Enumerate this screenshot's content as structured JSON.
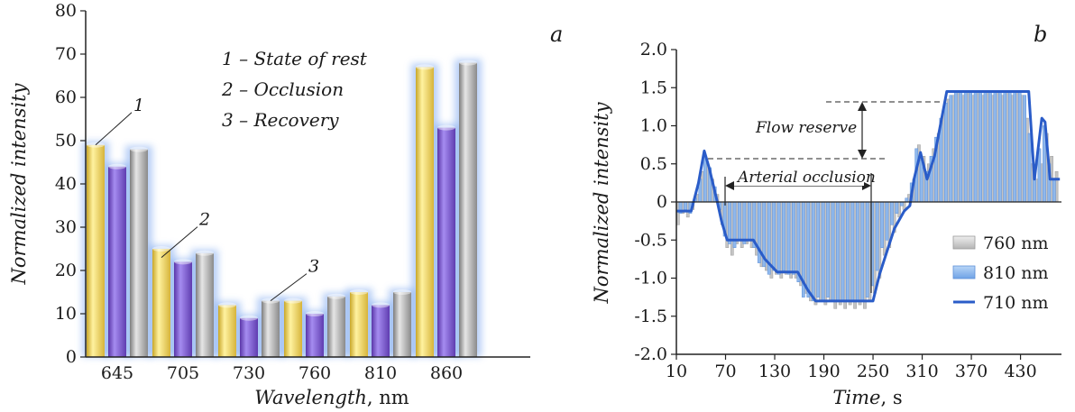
{
  "chart_data": [
    {
      "type": "bar",
      "panel_label": "a",
      "xlabel": "Wavelength",
      "xlabel_unit": ", nm",
      "ylabel": "Normalized intensity",
      "ylim": [
        0,
        80
      ],
      "yticks": [
        0,
        10,
        20,
        30,
        40,
        50,
        60,
        70,
        80
      ],
      "categories": [
        "645",
        "705",
        "730",
        "760",
        "810",
        "860"
      ],
      "series": [
        {
          "name": "1 – State of rest",
          "color": "#f2d455",
          "values": [
            49,
            25,
            12,
            13,
            15,
            67
          ]
        },
        {
          "name": "2 – Occlusion",
          "color": "#7a55c8",
          "values": [
            44,
            22,
            9,
            10,
            12,
            53
          ]
        },
        {
          "name": "3 – Recovery",
          "color": "#a6a6a6",
          "values": [
            48,
            24,
            13,
            14,
            15,
            68
          ]
        }
      ],
      "legend": [
        "1 – State of rest",
        "2 – Occlusion",
        "3 – Recovery"
      ],
      "callouts": [
        {
          "label": "1",
          "category": "645",
          "value": 49
        },
        {
          "label": "2",
          "category": "705",
          "value": 23
        },
        {
          "label": "3",
          "category": "730",
          "value": 13
        }
      ]
    },
    {
      "type": "bar",
      "panel_label": "b",
      "xlabel": "Time",
      "xlabel_unit": ", s",
      "ylabel": "Normalized intensity",
      "ylim": [
        -2.0,
        2.0
      ],
      "xlim": [
        10,
        480
      ],
      "yticks": [
        "2.0",
        "1.5",
        "1.0",
        "0.5",
        "0",
        "-0.5",
        "-1.0",
        "-1.5",
        "-2.0"
      ],
      "ytick_values": [
        2.0,
        1.5,
        1.0,
        0.5,
        0,
        -0.5,
        -1.0,
        -1.5,
        -2.0
      ],
      "xticks": [
        10,
        70,
        130,
        190,
        250,
        310,
        370,
        430
      ],
      "legend": [
        {
          "name": "760 nm",
          "kind": "bar",
          "color": "#c8c8c8"
        },
        {
          "name": "810 nm",
          "kind": "bar",
          "color": "#8fb8ec"
        },
        {
          "name": "710 nm",
          "kind": "line",
          "color": "#2a5cc8"
        }
      ],
      "annotations": {
        "flow_reserve": "Flow reserve",
        "arterial_occlusion": "Arterial occlusion"
      },
      "bars_760": [
        [
          12,
          -0.3
        ],
        [
          18,
          -0.15
        ],
        [
          24,
          -0.2
        ],
        [
          30,
          -0.1
        ],
        [
          36,
          0.1
        ],
        [
          42,
          0.4
        ],
        [
          48,
          0.5
        ],
        [
          54,
          0.3
        ],
        [
          60,
          0.1
        ],
        [
          66,
          -0.3
        ],
        [
          72,
          -0.6
        ],
        [
          78,
          -0.7
        ],
        [
          84,
          -0.55
        ],
        [
          90,
          -0.6
        ],
        [
          96,
          -0.55
        ],
        [
          102,
          -0.6
        ],
        [
          108,
          -0.7
        ],
        [
          114,
          -0.85
        ],
        [
          120,
          -0.9
        ],
        [
          126,
          -1.0
        ],
        [
          132,
          -0.95
        ],
        [
          138,
          -1.0
        ],
        [
          144,
          -0.95
        ],
        [
          150,
          -1.0
        ],
        [
          156,
          -1.0
        ],
        [
          162,
          -1.1
        ],
        [
          168,
          -1.2
        ],
        [
          174,
          -1.3
        ],
        [
          180,
          -1.35
        ],
        [
          186,
          -1.3
        ],
        [
          192,
          -1.35
        ],
        [
          198,
          -1.3
        ],
        [
          204,
          -1.4
        ],
        [
          210,
          -1.35
        ],
        [
          216,
          -1.4
        ],
        [
          222,
          -1.35
        ],
        [
          228,
          -1.4
        ],
        [
          234,
          -1.35
        ],
        [
          240,
          -1.4
        ],
        [
          246,
          -1.3
        ],
        [
          252,
          -1.2
        ],
        [
          258,
          -1.0
        ],
        [
          264,
          -0.7
        ],
        [
          270,
          -0.6
        ],
        [
          276,
          -0.4
        ],
        [
          282,
          -0.2
        ],
        [
          288,
          -0.1
        ],
        [
          294,
          0.1
        ],
        [
          300,
          0.3
        ],
        [
          306,
          0.75
        ],
        [
          312,
          0.6
        ],
        [
          318,
          0.5
        ],
        [
          324,
          0.7
        ],
        [
          330,
          0.9
        ],
        [
          336,
          1.2
        ],
        [
          342,
          1.35
        ],
        [
          348,
          1.4
        ],
        [
          354,
          1.45
        ],
        [
          360,
          1.4
        ],
        [
          366,
          1.45
        ],
        [
          372,
          1.4
        ],
        [
          378,
          1.45
        ],
        [
          384,
          1.4
        ],
        [
          390,
          1.45
        ],
        [
          396,
          1.4
        ],
        [
          402,
          1.45
        ],
        [
          408,
          1.4
        ],
        [
          414,
          1.45
        ],
        [
          420,
          1.4
        ],
        [
          426,
          1.45
        ],
        [
          432,
          1.4
        ],
        [
          438,
          1.1
        ],
        [
          444,
          0.5
        ],
        [
          450,
          0.3
        ],
        [
          456,
          0.5
        ],
        [
          462,
          0.9
        ],
        [
          468,
          0.6
        ],
        [
          474,
          0.4
        ]
      ],
      "bars_810": [
        [
          15,
          -0.15
        ],
        [
          21,
          -0.1
        ],
        [
          27,
          -0.15
        ],
        [
          33,
          0.05
        ],
        [
          39,
          0.3
        ],
        [
          45,
          0.6
        ],
        [
          51,
          0.45
        ],
        [
          57,
          0.2
        ],
        [
          63,
          -0.1
        ],
        [
          69,
          -0.45
        ],
        [
          75,
          -0.55
        ],
        [
          81,
          -0.6
        ],
        [
          87,
          -0.5
        ],
        [
          93,
          -0.55
        ],
        [
          99,
          -0.5
        ],
        [
          105,
          -0.6
        ],
        [
          111,
          -0.8
        ],
        [
          117,
          -0.85
        ],
        [
          123,
          -0.95
        ],
        [
          129,
          -0.9
        ],
        [
          135,
          -0.95
        ],
        [
          141,
          -0.9
        ],
        [
          147,
          -0.95
        ],
        [
          153,
          -0.95
        ],
        [
          159,
          -1.05
        ],
        [
          165,
          -1.25
        ],
        [
          171,
          -1.25
        ],
        [
          177,
          -1.3
        ],
        [
          183,
          -1.25
        ],
        [
          189,
          -1.3
        ],
        [
          195,
          -1.25
        ],
        [
          201,
          -1.3
        ],
        [
          207,
          -1.3
        ],
        [
          213,
          -1.3
        ],
        [
          219,
          -1.3
        ],
        [
          225,
          -1.3
        ],
        [
          231,
          -1.3
        ],
        [
          237,
          -1.3
        ],
        [
          243,
          -1.25
        ],
        [
          249,
          -1.1
        ],
        [
          255,
          -0.9
        ],
        [
          261,
          -0.6
        ],
        [
          267,
          -0.5
        ],
        [
          273,
          -0.3
        ],
        [
          279,
          -0.15
        ],
        [
          285,
          -0.05
        ],
        [
          291,
          0.05
        ],
        [
          297,
          0.25
        ],
        [
          303,
          0.7
        ],
        [
          309,
          0.55
        ],
        [
          315,
          0.4
        ],
        [
          321,
          0.6
        ],
        [
          327,
          0.85
        ],
        [
          333,
          1.1
        ],
        [
          339,
          1.3
        ],
        [
          345,
          1.4
        ],
        [
          351,
          1.45
        ],
        [
          357,
          1.45
        ],
        [
          363,
          1.45
        ],
        [
          369,
          1.45
        ],
        [
          375,
          1.45
        ],
        [
          381,
          1.45
        ],
        [
          387,
          1.45
        ],
        [
          393,
          1.45
        ],
        [
          399,
          1.45
        ],
        [
          405,
          1.45
        ],
        [
          411,
          1.45
        ],
        [
          417,
          1.45
        ],
        [
          423,
          1.45
        ],
        [
          429,
          1.45
        ],
        [
          435,
          1.4
        ],
        [
          441,
          0.9
        ],
        [
          447,
          0.4
        ],
        [
          453,
          0.7
        ],
        [
          459,
          1.0
        ],
        [
          465,
          0.5
        ],
        [
          471,
          0.3
        ]
      ],
      "line_710": [
        [
          10,
          -0.12
        ],
        [
          28,
          -0.12
        ],
        [
          37,
          0.25
        ],
        [
          44,
          0.67
        ],
        [
          50,
          0.45
        ],
        [
          60,
          0.0
        ],
        [
          65,
          -0.25
        ],
        [
          72,
          -0.5
        ],
        [
          94,
          -0.5
        ],
        [
          104,
          -0.5
        ],
        [
          118,
          -0.75
        ],
        [
          133,
          -0.92
        ],
        [
          158,
          -0.92
        ],
        [
          170,
          -1.15
        ],
        [
          180,
          -1.3
        ],
        [
          250,
          -1.3
        ],
        [
          258,
          -0.95
        ],
        [
          270,
          -0.55
        ],
        [
          276,
          -0.35
        ],
        [
          288,
          -0.12
        ],
        [
          295,
          -0.05
        ],
        [
          300,
          0.3
        ],
        [
          308,
          0.65
        ],
        [
          316,
          0.3
        ],
        [
          325,
          0.6
        ],
        [
          340,
          1.45
        ],
        [
          440,
          1.45
        ],
        [
          447,
          0.3
        ],
        [
          456,
          1.1
        ],
        [
          460,
          1.05
        ],
        [
          466,
          0.3
        ],
        [
          478,
          0.3
        ]
      ]
    }
  ]
}
